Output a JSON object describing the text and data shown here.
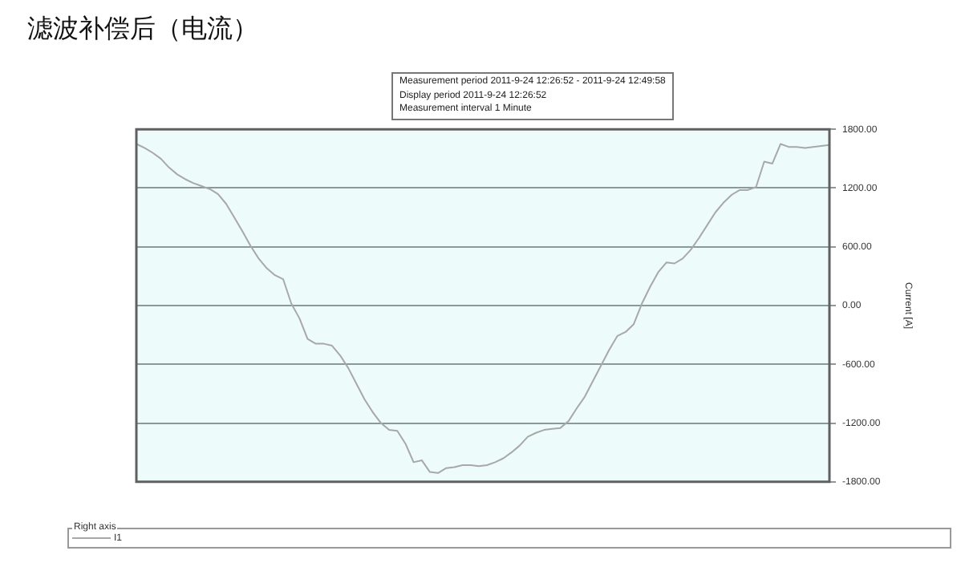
{
  "chart_data": {
    "type": "line",
    "title": "滤波补偿后（电流）",
    "annotations": [
      "Measurement period  2011-9-24 12:26:52 - 2011-9-24 12:49:58",
      "Display period  2011-9-24 12:26:52",
      "Measurement interval  1 Minute"
    ],
    "ylabel": "Current [A]",
    "legend_title": "Right axis",
    "legend": "bottom",
    "grid": "y",
    "marker": "none",
    "line_style": "solid",
    "categories": [
      null,
      null,
      null,
      null,
      null,
      null,
      null,
      null,
      null,
      null,
      null,
      null,
      null,
      null,
      null,
      null,
      null,
      null,
      null,
      null,
      null,
      null,
      null,
      null,
      null,
      null,
      null,
      null,
      null,
      null,
      null,
      null,
      null,
      null,
      null,
      null,
      null,
      null,
      null,
      null,
      null,
      null,
      null,
      null,
      null,
      null,
      null,
      null,
      null,
      null,
      null,
      null,
      null,
      null,
      null,
      null,
      null,
      null,
      null,
      null,
      null,
      null,
      null,
      null,
      null,
      null,
      null,
      null,
      null,
      null,
      null,
      null,
      null,
      null,
      null,
      null,
      null,
      null,
      null,
      null,
      null,
      null,
      null,
      null,
      null,
      null
    ],
    "ylim": [
      -1800,
      1800
    ],
    "yticks": [
      {
        "value": -1800,
        "label": "-1800.00"
      },
      {
        "value": -1200,
        "label": "-1200.00"
      },
      {
        "value": -600,
        "label": "-600.00"
      },
      {
        "value": 0,
        "label": "0.00"
      },
      {
        "value": 600,
        "label": "600.00"
      },
      {
        "value": 1200,
        "label": "1200.00"
      },
      {
        "value": 1800,
        "label": "1800.00"
      }
    ],
    "series": [
      {
        "name": "I1",
        "color": "#a8a8a8",
        "values": [
          1650,
          1610,
          1560,
          1500,
          1410,
          1340,
          1290,
          1250,
          1220,
          1190,
          1140,
          1040,
          900,
          760,
          610,
          480,
          380,
          310,
          270,
          20,
          -130,
          -340,
          -390,
          -390,
          -410,
          -510,
          -640,
          -800,
          -960,
          -1090,
          -1200,
          -1270,
          -1280,
          -1410,
          -1600,
          -1580,
          -1700,
          -1710,
          -1660,
          -1650,
          -1630,
          -1630,
          -1640,
          -1630,
          -1600,
          -1560,
          -1500,
          -1430,
          -1340,
          -1300,
          -1270,
          -1260,
          -1250,
          -1180,
          -1050,
          -930,
          -770,
          -610,
          -450,
          -310,
          -270,
          -190,
          20,
          190,
          340,
          440,
          430,
          480,
          570,
          690,
          820,
          950,
          1050,
          1130,
          1180,
          1180,
          1210,
          1470,
          1450,
          1650,
          1620,
          1620,
          1610,
          1620,
          1630,
          1640
        ]
      }
    ]
  }
}
